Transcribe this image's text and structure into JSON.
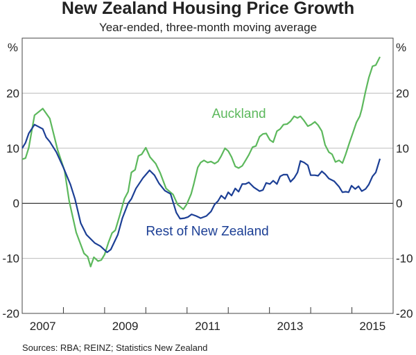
{
  "chart_data": {
    "type": "line",
    "title": "New Zealand Housing Price Growth",
    "subtitle": "Year-ended, three-month moving average",
    "ylabel_left": "%",
    "ylabel_right": "%",
    "ylim": [
      -20,
      30
    ],
    "xlim": [
      2007,
      2016
    ],
    "yticks": [
      -20,
      -10,
      0,
      10,
      20
    ],
    "ytick_labels": [
      "-20",
      "-10",
      "0",
      "10",
      "20"
    ],
    "xtick_labels": [
      {
        "label": "2007",
        "year": 2007
      },
      {
        "label": "2009",
        "year": 2009
      },
      {
        "label": "2011",
        "year": 2011
      },
      {
        "label": "2013",
        "year": 2013
      },
      {
        "label": "2015",
        "year": 2015
      }
    ],
    "grid": true,
    "source": "Sources:  RBA; REINZ; Statistics New Zealand",
    "series": [
      {
        "name": "Auckland",
        "color": "#5cb85c",
        "label_pos": [
          2011.6,
          15.5
        ],
        "points": [
          [
            2007.0,
            8.0
          ],
          [
            2007.08,
            8.2
          ],
          [
            2007.16,
            10.1
          ],
          [
            2007.3,
            16.0
          ],
          [
            2007.5,
            17.2
          ],
          [
            2007.67,
            15.4
          ],
          [
            2007.86,
            9.7
          ],
          [
            2008.03,
            5.9
          ],
          [
            2008.14,
            0.4
          ],
          [
            2008.31,
            -5.3
          ],
          [
            2008.5,
            -9.1
          ],
          [
            2008.59,
            -9.7
          ],
          [
            2008.66,
            -11.5
          ],
          [
            2008.74,
            -9.8
          ],
          [
            2008.84,
            -10.5
          ],
          [
            2008.92,
            -10.3
          ],
          [
            2009.0,
            -9.3
          ],
          [
            2009.09,
            -7.2
          ],
          [
            2009.18,
            -5.4
          ],
          [
            2009.26,
            -4.9
          ],
          [
            2009.37,
            -2.1
          ],
          [
            2009.48,
            0.8
          ],
          [
            2009.57,
            2.1
          ],
          [
            2009.65,
            5.6
          ],
          [
            2009.74,
            6.1
          ],
          [
            2009.82,
            8.6
          ],
          [
            2009.9,
            8.9
          ],
          [
            2010.0,
            10.1
          ],
          [
            2010.1,
            8.4
          ],
          [
            2010.24,
            7.2
          ],
          [
            2010.35,
            5.5
          ],
          [
            2010.49,
            2.7
          ],
          [
            2010.66,
            1.6
          ],
          [
            2010.77,
            -0.2
          ],
          [
            2010.91,
            -1.1
          ],
          [
            2010.99,
            -0.2
          ],
          [
            2011.1,
            1.7
          ],
          [
            2011.16,
            3.4
          ],
          [
            2011.26,
            6.5
          ],
          [
            2011.33,
            7.4
          ],
          [
            2011.41,
            7.8
          ],
          [
            2011.5,
            7.4
          ],
          [
            2011.58,
            7.6
          ],
          [
            2011.67,
            7.2
          ],
          [
            2011.75,
            7.6
          ],
          [
            2011.83,
            8.6
          ],
          [
            2011.92,
            10.0
          ],
          [
            2012.0,
            9.5
          ],
          [
            2012.08,
            8.4
          ],
          [
            2012.17,
            6.7
          ],
          [
            2012.25,
            6.4
          ],
          [
            2012.34,
            6.8
          ],
          [
            2012.42,
            7.8
          ],
          [
            2012.5,
            8.8
          ],
          [
            2012.59,
            10.2
          ],
          [
            2012.67,
            10.4
          ],
          [
            2012.76,
            12.1
          ],
          [
            2012.84,
            12.6
          ],
          [
            2012.92,
            12.7
          ],
          [
            2013.01,
            11.5
          ],
          [
            2013.09,
            11.1
          ],
          [
            2013.18,
            13.1
          ],
          [
            2013.26,
            13.5
          ],
          [
            2013.34,
            14.3
          ],
          [
            2013.43,
            14.4
          ],
          [
            2013.51,
            14.9
          ],
          [
            2013.6,
            15.8
          ],
          [
            2013.68,
            15.5
          ],
          [
            2013.75,
            15.8
          ],
          [
            2013.84,
            15.0
          ],
          [
            2013.93,
            14.0
          ],
          [
            2014.01,
            14.3
          ],
          [
            2014.1,
            14.8
          ],
          [
            2014.18,
            14.2
          ],
          [
            2014.27,
            13.1
          ],
          [
            2014.35,
            10.6
          ],
          [
            2014.44,
            9.3
          ],
          [
            2014.52,
            8.9
          ],
          [
            2014.6,
            7.5
          ],
          [
            2014.69,
            7.8
          ],
          [
            2014.77,
            7.3
          ],
          [
            2014.85,
            8.9
          ],
          [
            2014.94,
            11.0
          ],
          [
            2015.02,
            12.7
          ],
          [
            2015.11,
            14.7
          ],
          [
            2015.19,
            15.8
          ],
          [
            2015.24,
            17.1
          ],
          [
            2015.33,
            20.3
          ],
          [
            2015.41,
            22.8
          ],
          [
            2015.5,
            24.9
          ],
          [
            2015.58,
            25.1
          ],
          [
            2015.68,
            26.6
          ]
        ]
      },
      {
        "name": "Rest of New Zealand",
        "color": "#1c3f95",
        "label_pos": [
          2010.0,
          -5.8
        ],
        "points": [
          [
            2007.0,
            10.0
          ],
          [
            2007.08,
            11.0
          ],
          [
            2007.16,
            12.7
          ],
          [
            2007.3,
            14.3
          ],
          [
            2007.5,
            13.5
          ],
          [
            2007.58,
            12.0
          ],
          [
            2007.67,
            11.2
          ],
          [
            2007.83,
            9.3
          ],
          [
            2008.0,
            6.5
          ],
          [
            2008.17,
            3.4
          ],
          [
            2008.28,
            0.8
          ],
          [
            2008.42,
            -3.6
          ],
          [
            2008.56,
            -5.7
          ],
          [
            2008.76,
            -7.2
          ],
          [
            2008.9,
            -7.8
          ],
          [
            2009.06,
            -8.9
          ],
          [
            2009.15,
            -8.4
          ],
          [
            2009.32,
            -5.7
          ],
          [
            2009.43,
            -2.7
          ],
          [
            2009.57,
            0.0
          ],
          [
            2009.65,
            0.8
          ],
          [
            2009.76,
            2.7
          ],
          [
            2009.93,
            4.6
          ],
          [
            2010.09,
            6.0
          ],
          [
            2010.21,
            5.1
          ],
          [
            2010.32,
            3.6
          ],
          [
            2010.46,
            2.3
          ],
          [
            2010.6,
            1.7
          ],
          [
            2010.74,
            -1.7
          ],
          [
            2010.83,
            -2.8
          ],
          [
            2010.94,
            -2.7
          ],
          [
            2011.02,
            -2.5
          ],
          [
            2011.11,
            -2.0
          ],
          [
            2011.22,
            -2.3
          ],
          [
            2011.33,
            -2.7
          ],
          [
            2011.47,
            -2.3
          ],
          [
            2011.58,
            -1.5
          ],
          [
            2011.67,
            -0.2
          ],
          [
            2011.75,
            0.4
          ],
          [
            2011.83,
            1.4
          ],
          [
            2011.92,
            0.8
          ],
          [
            2012.0,
            2.0
          ],
          [
            2012.08,
            1.4
          ],
          [
            2012.17,
            2.7
          ],
          [
            2012.25,
            2.1
          ],
          [
            2012.34,
            3.5
          ],
          [
            2012.42,
            3.5
          ],
          [
            2012.5,
            3.8
          ],
          [
            2012.62,
            2.9
          ],
          [
            2012.76,
            2.2
          ],
          [
            2012.84,
            2.4
          ],
          [
            2012.92,
            3.7
          ],
          [
            2013.01,
            3.5
          ],
          [
            2013.09,
            4.1
          ],
          [
            2013.18,
            3.5
          ],
          [
            2013.26,
            4.9
          ],
          [
            2013.34,
            5.2
          ],
          [
            2013.43,
            5.2
          ],
          [
            2013.51,
            3.9
          ],
          [
            2013.6,
            4.6
          ],
          [
            2013.68,
            5.6
          ],
          [
            2013.75,
            7.7
          ],
          [
            2013.84,
            7.4
          ],
          [
            2013.93,
            6.9
          ],
          [
            2014.0,
            5.1
          ],
          [
            2014.1,
            5.1
          ],
          [
            2014.18,
            5.0
          ],
          [
            2014.27,
            5.8
          ],
          [
            2014.35,
            5.3
          ],
          [
            2014.44,
            4.5
          ],
          [
            2014.57,
            4.0
          ],
          [
            2014.69,
            3.0
          ],
          [
            2014.77,
            2.0
          ],
          [
            2014.85,
            2.1
          ],
          [
            2014.92,
            2.0
          ],
          [
            2014.99,
            3.2
          ],
          [
            2015.08,
            2.6
          ],
          [
            2015.16,
            3.1
          ],
          [
            2015.24,
            2.2
          ],
          [
            2015.33,
            2.6
          ],
          [
            2015.41,
            3.4
          ],
          [
            2015.5,
            4.9
          ],
          [
            2015.58,
            5.6
          ],
          [
            2015.68,
            8.1
          ]
        ]
      }
    ]
  }
}
